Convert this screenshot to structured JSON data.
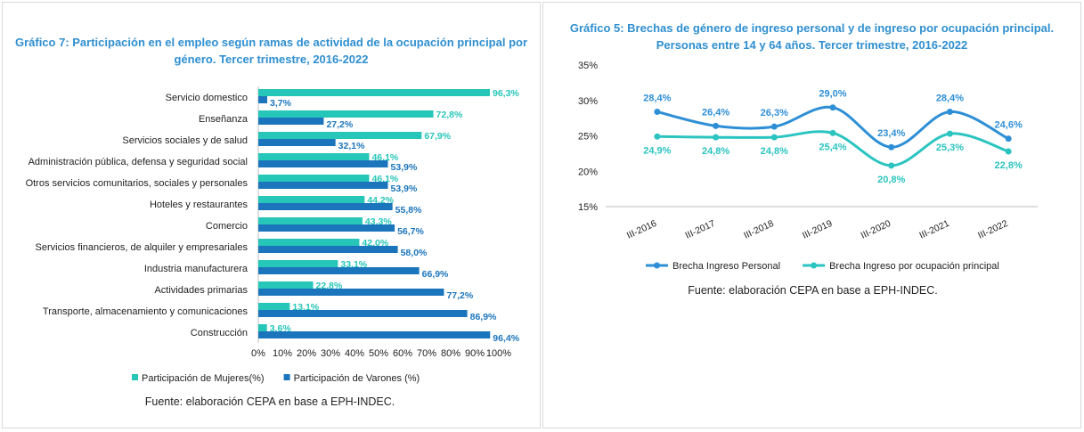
{
  "charts": [
    {
      "title": "Gráfico 7: Participación en el empleo según ramas de actividad de la ocupación principal por género. Tercer trimestre, 2016-2022",
      "source": "Fuente: elaboración CEPA en base a EPH-INDEC."
    },
    {
      "title": "Gráfico 5: Brechas de género de ingreso personal y de ingreso por ocupación principal. Personas entre 14 y 64 años. Tercer trimestre, 2016-2022",
      "source": "Fuente: elaboración CEPA en base a EPH-INDEC."
    }
  ],
  "chart_data": [
    {
      "type": "bar",
      "orientation": "horizontal",
      "title": "Gráfico 7: Participación en el empleo según ramas de actividad de la ocupación principal por género. Tercer trimestre, 2016-2022",
      "categories": [
        "Servicio domestico",
        "Enseñanza",
        "Servicios sociales y de salud",
        "Administración pública, defensa y seguridad social",
        "Otros servicios comunitarios, sociales y personales",
        "Hoteles y restaurantes",
        "Comercio",
        "Servicios financieros, de alquiler y empresariales",
        "Industria manufacturera",
        "Actividades primarias",
        "Transporte, almacenamiento y comunicaciones",
        "Construcción"
      ],
      "series": [
        {
          "name": "Participación de Mujeres(%)",
          "color": "#26c6b8",
          "values": [
            96.3,
            72.8,
            67.9,
            46.1,
            46.1,
            44.2,
            43.3,
            42.0,
            33.1,
            22.8,
            13.1,
            3.6
          ],
          "labels": [
            "96,3%",
            "72,8%",
            "67,9%",
            "46,1%",
            "46,1%",
            "44,2%",
            "43,3%",
            "42,0%",
            "33,1%",
            "22,8%",
            "13,1%",
            "3,6%"
          ]
        },
        {
          "name": "Participación de Varones (%)",
          "color": "#1b75bc",
          "values": [
            3.7,
            27.2,
            32.1,
            53.9,
            53.9,
            55.8,
            56.7,
            58.0,
            66.9,
            77.2,
            86.9,
            96.4
          ],
          "labels": [
            "3,7%",
            "27,2%",
            "32,1%",
            "53,9%",
            "53,9%",
            "55,8%",
            "56,7%",
            "58,0%",
            "66,9%",
            "77,2%",
            "86,9%",
            "96,4%"
          ]
        }
      ],
      "xlim": [
        0,
        100
      ],
      "ticks": [
        "0%",
        "10%",
        "20%",
        "30%",
        "40%",
        "50%",
        "60%",
        "70%",
        "80%",
        "90%",
        "100%"
      ],
      "grid": false,
      "legend": "bottom"
    },
    {
      "type": "line",
      "title": "Gráfico 5: Brechas de género de ingreso personal y de ingreso por ocupación principal. Personas entre 14 y 64 años. Tercer trimestre, 2016-2022",
      "x": [
        "III-2016",
        "III-2017",
        "III-2018",
        "III-2019",
        "III-2020",
        "III-2021",
        "III-2022"
      ],
      "series": [
        {
          "name": "Brecha Ingreso Personal",
          "color": "#2e8fd6",
          "values": [
            28.4,
            26.4,
            26.3,
            29.0,
            23.4,
            28.4,
            24.6
          ],
          "labels": [
            "28,4%",
            "26,4%",
            "26,3%",
            "29,0%",
            "23,4%",
            "28,4%",
            "24,6%"
          ]
        },
        {
          "name": "Brecha Ingreso por ocupación principal",
          "color": "#2bc4c0",
          "values": [
            24.9,
            24.8,
            24.8,
            25.4,
            20.8,
            25.3,
            22.8
          ],
          "labels": [
            "24,9%",
            "24,8%",
            "24,8%",
            "25,4%",
            "20,8%",
            "25,3%",
            "22,8%"
          ]
        }
      ],
      "ylim": [
        15,
        35
      ],
      "yticks": [
        15,
        20,
        25,
        30,
        35
      ],
      "yticklabels": [
        "15%",
        "20%",
        "25%",
        "30%",
        "35%"
      ],
      "grid": false,
      "legend": "bottom"
    }
  ]
}
